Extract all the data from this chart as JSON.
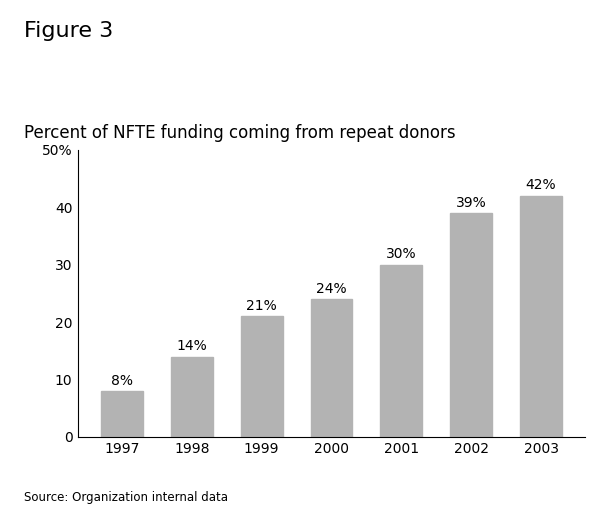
{
  "figure_label": "Figure 3",
  "subtitle": "Percent of NFTE funding coming from repeat donors",
  "source": "Source: Organization internal data",
  "categories": [
    "1997",
    "1998",
    "1999",
    "2000",
    "2001",
    "2002",
    "2003"
  ],
  "values": [
    8,
    14,
    21,
    24,
    30,
    39,
    42
  ],
  "labels": [
    "8%",
    "14%",
    "21%",
    "24%",
    "30%",
    "39%",
    "42%"
  ],
  "bar_color": "#b3b3b3",
  "bar_edge_color": "#b3b3b3",
  "ylim": [
    0,
    50
  ],
  "yticks": [
    0,
    10,
    20,
    30,
    40,
    50
  ],
  "ytick_labels": [
    "0",
    "10",
    "20",
    "30",
    "40",
    "50%"
  ],
  "background_color": "#ffffff",
  "figure_label_fontsize": 16,
  "subtitle_fontsize": 12,
  "source_fontsize": 8.5,
  "tick_fontsize": 10,
  "bar_label_fontsize": 10,
  "font_family": "DejaVu Sans"
}
